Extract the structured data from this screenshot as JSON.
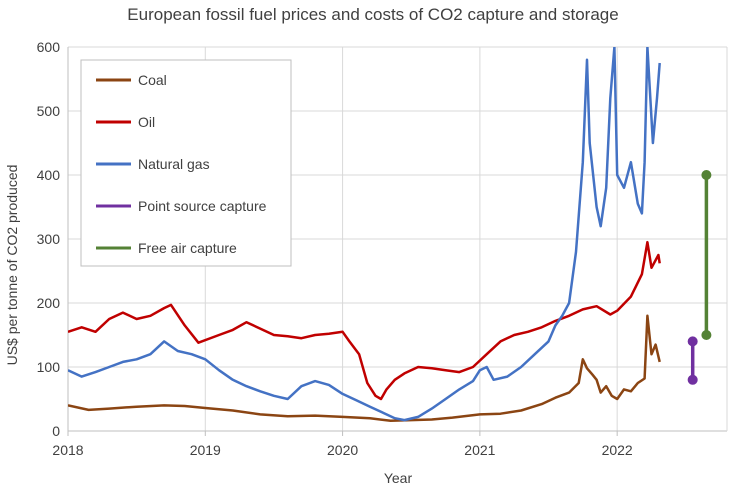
{
  "chart_data": {
    "type": "line",
    "title": "European fossil fuel prices and costs of CO2 capture and storage",
    "xlabel": "Year",
    "ylabel": "US$ per tonne of CO2 produced",
    "xlim": [
      2018.0,
      2022.8
    ],
    "ylim": [
      0,
      600
    ],
    "yticks": [
      0,
      100,
      200,
      300,
      400,
      500,
      600
    ],
    "xticks": [
      {
        "value": 2018,
        "label": "2018"
      },
      {
        "value": 2019,
        "label": "2019"
      },
      {
        "value": 2020,
        "label": "2020"
      },
      {
        "value": 2021,
        "label": "2021"
      },
      {
        "value": 2022,
        "label": "2022"
      }
    ],
    "grid": true,
    "legend_position": "top-left",
    "series": [
      {
        "name": "Coal",
        "color": "#8B4513",
        "points": [
          [
            2018.0,
            40
          ],
          [
            2018.15,
            33
          ],
          [
            2018.3,
            35
          ],
          [
            2018.5,
            38
          ],
          [
            2018.7,
            40
          ],
          [
            2018.85,
            39
          ],
          [
            2019.0,
            36
          ],
          [
            2019.2,
            32
          ],
          [
            2019.4,
            26
          ],
          [
            2019.6,
            23
          ],
          [
            2019.8,
            24
          ],
          [
            2020.0,
            22
          ],
          [
            2020.2,
            20
          ],
          [
            2020.35,
            16
          ],
          [
            2020.5,
            17
          ],
          [
            2020.65,
            18
          ],
          [
            2020.8,
            21
          ],
          [
            2021.0,
            26
          ],
          [
            2021.15,
            27
          ],
          [
            2021.3,
            32
          ],
          [
            2021.45,
            42
          ],
          [
            2021.55,
            52
          ],
          [
            2021.65,
            60
          ],
          [
            2021.72,
            75
          ],
          [
            2021.75,
            112
          ],
          [
            2021.78,
            98
          ],
          [
            2021.82,
            88
          ],
          [
            2021.85,
            80
          ],
          [
            2021.88,
            60
          ],
          [
            2021.92,
            70
          ],
          [
            2021.96,
            55
          ],
          [
            2022.0,
            50
          ],
          [
            2022.05,
            65
          ],
          [
            2022.1,
            62
          ],
          [
            2022.15,
            75
          ],
          [
            2022.2,
            82
          ],
          [
            2022.22,
            180
          ],
          [
            2022.25,
            120
          ],
          [
            2022.28,
            135
          ],
          [
            2022.31,
            108
          ]
        ]
      },
      {
        "name": "Oil",
        "color": "#C00000",
        "points": [
          [
            2018.0,
            155
          ],
          [
            2018.1,
            162
          ],
          [
            2018.2,
            155
          ],
          [
            2018.3,
            175
          ],
          [
            2018.4,
            185
          ],
          [
            2018.5,
            175
          ],
          [
            2018.6,
            180
          ],
          [
            2018.7,
            192
          ],
          [
            2018.75,
            197
          ],
          [
            2018.85,
            165
          ],
          [
            2018.95,
            138
          ],
          [
            2019.1,
            150
          ],
          [
            2019.2,
            158
          ],
          [
            2019.3,
            170
          ],
          [
            2019.4,
            160
          ],
          [
            2019.5,
            150
          ],
          [
            2019.6,
            148
          ],
          [
            2019.7,
            145
          ],
          [
            2019.8,
            150
          ],
          [
            2019.9,
            152
          ],
          [
            2020.0,
            155
          ],
          [
            2020.05,
            140
          ],
          [
            2020.12,
            120
          ],
          [
            2020.18,
            75
          ],
          [
            2020.24,
            55
          ],
          [
            2020.28,
            50
          ],
          [
            2020.32,
            65
          ],
          [
            2020.38,
            80
          ],
          [
            2020.45,
            90
          ],
          [
            2020.55,
            100
          ],
          [
            2020.65,
            98
          ],
          [
            2020.75,
            95
          ],
          [
            2020.85,
            92
          ],
          [
            2020.95,
            100
          ],
          [
            2021.05,
            120
          ],
          [
            2021.15,
            140
          ],
          [
            2021.25,
            150
          ],
          [
            2021.35,
            155
          ],
          [
            2021.45,
            162
          ],
          [
            2021.55,
            172
          ],
          [
            2021.65,
            180
          ],
          [
            2021.75,
            190
          ],
          [
            2021.85,
            195
          ],
          [
            2021.95,
            182
          ],
          [
            2022.0,
            188
          ],
          [
            2022.1,
            210
          ],
          [
            2022.18,
            245
          ],
          [
            2022.22,
            295
          ],
          [
            2022.25,
            255
          ],
          [
            2022.3,
            275
          ],
          [
            2022.31,
            262
          ]
        ]
      },
      {
        "name": "Natural gas",
        "color": "#4472C4",
        "points": [
          [
            2018.0,
            95
          ],
          [
            2018.1,
            85
          ],
          [
            2018.2,
            92
          ],
          [
            2018.3,
            100
          ],
          [
            2018.4,
            108
          ],
          [
            2018.5,
            112
          ],
          [
            2018.6,
            120
          ],
          [
            2018.7,
            140
          ],
          [
            2018.8,
            125
          ],
          [
            2018.9,
            120
          ],
          [
            2019.0,
            112
          ],
          [
            2019.1,
            95
          ],
          [
            2019.2,
            80
          ],
          [
            2019.3,
            70
          ],
          [
            2019.4,
            62
          ],
          [
            2019.5,
            55
          ],
          [
            2019.6,
            50
          ],
          [
            2019.7,
            70
          ],
          [
            2019.8,
            78
          ],
          [
            2019.9,
            72
          ],
          [
            2020.0,
            58
          ],
          [
            2020.1,
            48
          ],
          [
            2020.2,
            38
          ],
          [
            2020.3,
            28
          ],
          [
            2020.38,
            20
          ],
          [
            2020.45,
            17
          ],
          [
            2020.55,
            22
          ],
          [
            2020.65,
            35
          ],
          [
            2020.75,
            50
          ],
          [
            2020.85,
            65
          ],
          [
            2020.95,
            78
          ],
          [
            2021.0,
            95
          ],
          [
            2021.05,
            100
          ],
          [
            2021.1,
            80
          ],
          [
            2021.2,
            85
          ],
          [
            2021.3,
            100
          ],
          [
            2021.4,
            120
          ],
          [
            2021.5,
            140
          ],
          [
            2021.55,
            165
          ],
          [
            2021.6,
            180
          ],
          [
            2021.65,
            200
          ],
          [
            2021.7,
            280
          ],
          [
            2021.75,
            420
          ],
          [
            2021.78,
            580
          ],
          [
            2021.8,
            450
          ],
          [
            2021.85,
            350
          ],
          [
            2021.88,
            320
          ],
          [
            2021.92,
            380
          ],
          [
            2021.95,
            520
          ],
          [
            2021.98,
            600
          ],
          [
            2022.0,
            400
          ],
          [
            2022.05,
            380
          ],
          [
            2022.1,
            420
          ],
          [
            2022.15,
            355
          ],
          [
            2022.18,
            340
          ],
          [
            2022.2,
            420
          ],
          [
            2022.22,
            600
          ],
          [
            2022.26,
            450
          ],
          [
            2022.29,
            520
          ],
          [
            2022.31,
            575
          ]
        ]
      },
      {
        "name": "Point source capture",
        "color": "#7030A0",
        "points": [
          [
            2022.55,
            80
          ],
          [
            2022.55,
            140
          ]
        ]
      },
      {
        "name": "Free air capture",
        "color": "#548235",
        "points": [
          [
            2022.65,
            150
          ],
          [
            2022.65,
            400
          ]
        ]
      }
    ]
  }
}
